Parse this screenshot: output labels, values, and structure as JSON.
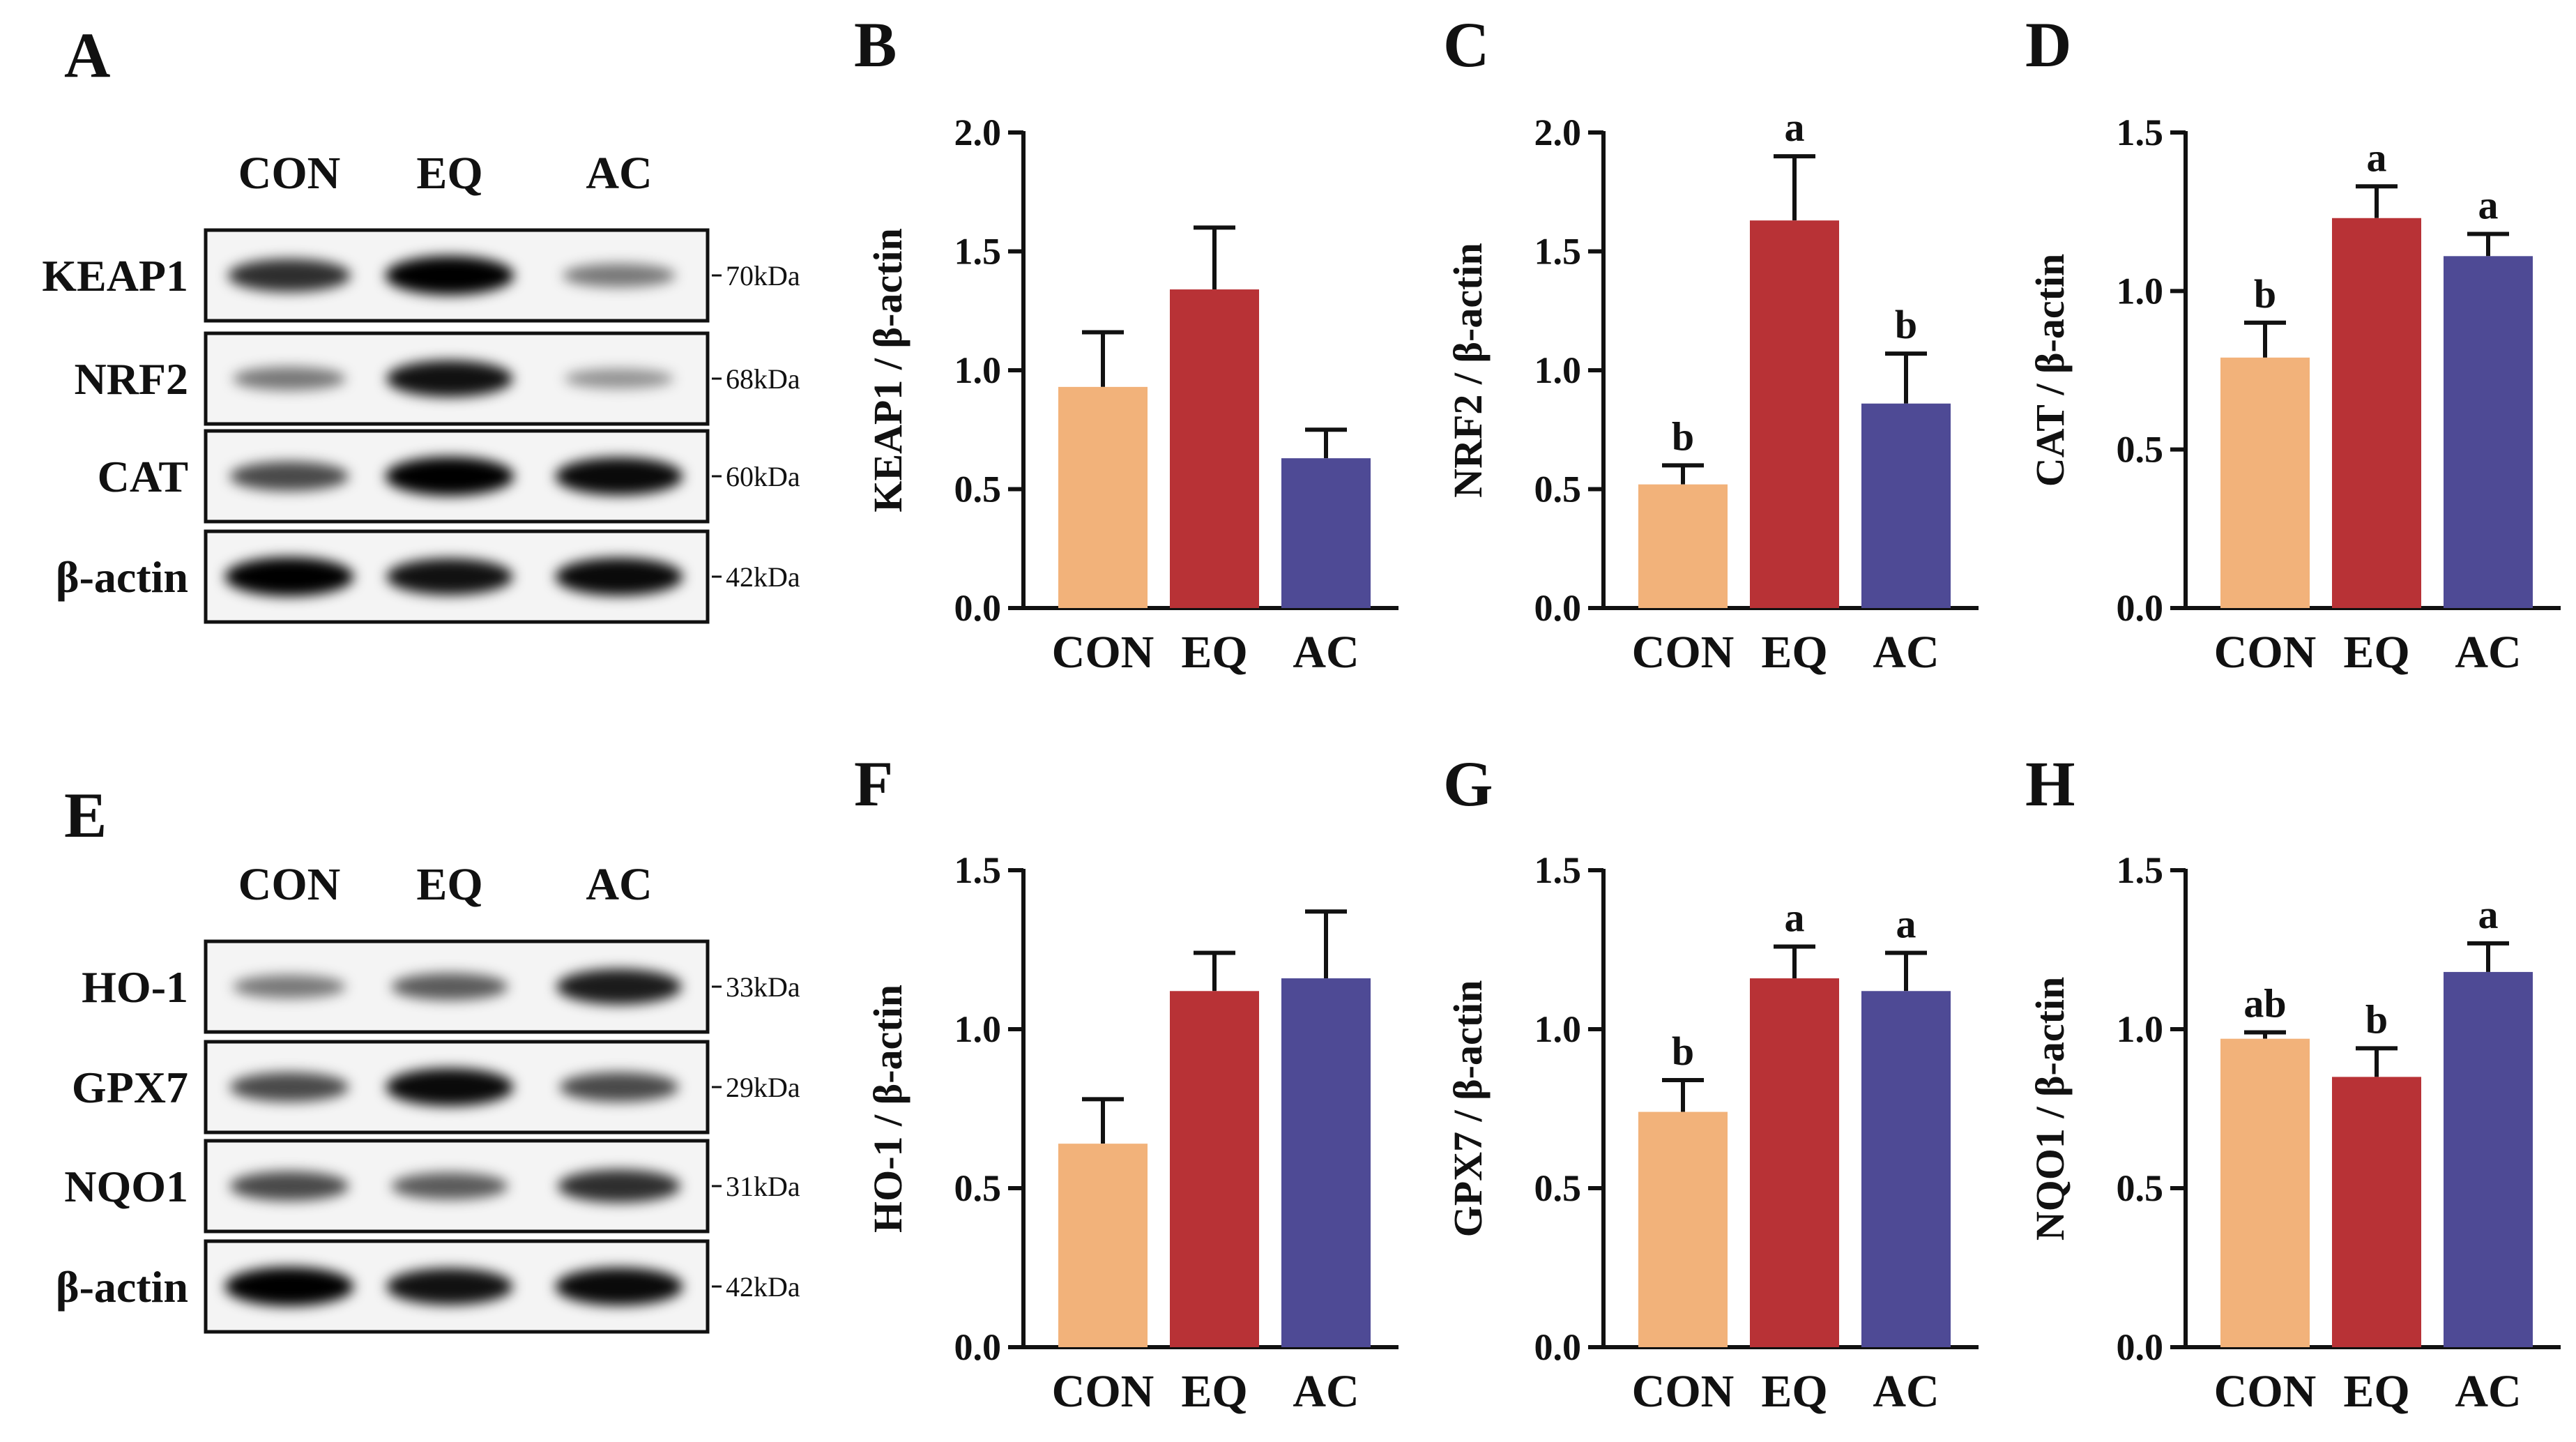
{
  "colors": {
    "CON": "#F2B27A",
    "EQ": "#B83236",
    "AC": "#4E4A95",
    "axis": "#111111"
  },
  "blots": [
    {
      "letter": "A",
      "lanes": [
        "CON",
        "EQ",
        "AC"
      ],
      "rows": [
        {
          "protein": "KEAP1",
          "kda": "70kDa",
          "intensity": [
            0.75,
            1.0,
            0.35
          ]
        },
        {
          "protein": "NRF2",
          "kda": "68kDa",
          "intensity": [
            0.35,
            0.9,
            0.2
          ]
        },
        {
          "protein": "CAT",
          "kda": "60kDa",
          "intensity": [
            0.6,
            1.0,
            0.95
          ]
        },
        {
          "protein": "β-actin",
          "kda": "42kDa",
          "intensity": [
            1.0,
            0.9,
            0.95
          ]
        }
      ]
    },
    {
      "letter": "E",
      "lanes": [
        "CON",
        "EQ",
        "AC"
      ],
      "rows": [
        {
          "protein": "HO-1",
          "kda": "33kDa",
          "intensity": [
            0.35,
            0.5,
            0.85
          ]
        },
        {
          "protein": "GPX7",
          "kda": "29kDa",
          "intensity": [
            0.6,
            0.95,
            0.6
          ]
        },
        {
          "protein": "NQO1",
          "kda": "31kDa",
          "intensity": [
            0.6,
            0.5,
            0.75
          ]
        },
        {
          "protein": "β-actin",
          "kda": "42kDa",
          "intensity": [
            1.0,
            0.9,
            0.95
          ]
        }
      ]
    }
  ],
  "chart_data": [
    {
      "letter": "B",
      "type": "bar",
      "categories": [
        "CON",
        "EQ",
        "AC"
      ],
      "values": [
        0.93,
        1.34,
        0.63
      ],
      "errors": [
        0.23,
        0.26,
        0.12
      ],
      "labels": [
        "",
        "",
        ""
      ],
      "ylabel": "KEAP1 / β-actin",
      "ylim": [
        0,
        2.0
      ],
      "ticks": [
        "0.0",
        "0.5",
        "1.0",
        "1.5",
        "2.0"
      ]
    },
    {
      "letter": "C",
      "type": "bar",
      "categories": [
        "CON",
        "EQ",
        "AC"
      ],
      "values": [
        0.52,
        1.63,
        0.86
      ],
      "errors": [
        0.08,
        0.27,
        0.21
      ],
      "labels": [
        "b",
        "a",
        "b"
      ],
      "ylabel": "NRF2 / β-actin",
      "ylim": [
        0,
        2.0
      ],
      "ticks": [
        "0.0",
        "0.5",
        "1.0",
        "1.5",
        "2.0"
      ]
    },
    {
      "letter": "D",
      "type": "bar",
      "categories": [
        "CON",
        "EQ",
        "AC"
      ],
      "values": [
        0.79,
        1.23,
        1.11
      ],
      "errors": [
        0.11,
        0.1,
        0.07
      ],
      "labels": [
        "b",
        "a",
        "a"
      ],
      "ylabel": "CAT / β-actin",
      "ylim": [
        0,
        1.5
      ],
      "ticks": [
        "0.0",
        "0.5",
        "1.0",
        "1.5"
      ]
    },
    {
      "letter": "F",
      "type": "bar",
      "categories": [
        "CON",
        "EQ",
        "AC"
      ],
      "values": [
        0.64,
        1.12,
        1.16
      ],
      "errors": [
        0.14,
        0.12,
        0.21
      ],
      "labels": [
        "",
        "",
        ""
      ],
      "ylabel": "HO-1 / β-actin",
      "ylim": [
        0,
        1.5
      ],
      "ticks": [
        "0.0",
        "0.5",
        "1.0",
        "1.5"
      ]
    },
    {
      "letter": "G",
      "type": "bar",
      "categories": [
        "CON",
        "EQ",
        "AC"
      ],
      "values": [
        0.74,
        1.16,
        1.12
      ],
      "errors": [
        0.1,
        0.1,
        0.12
      ],
      "labels": [
        "b",
        "a",
        "a"
      ],
      "ylabel": "GPX7 / β-actin",
      "ylim": [
        0,
        1.5
      ],
      "ticks": [
        "0.0",
        "0.5",
        "1.0",
        "1.5"
      ]
    },
    {
      "letter": "H",
      "type": "bar",
      "categories": [
        "CON",
        "EQ",
        "AC"
      ],
      "values": [
        0.97,
        0.85,
        1.18
      ],
      "errors": [
        0.02,
        0.09,
        0.09
      ],
      "labels": [
        "ab",
        "b",
        "a"
      ],
      "ylabel": "NQO1 / β-actin",
      "ylim": [
        0,
        1.5
      ],
      "ticks": [
        "0.0",
        "0.5",
        "1.0",
        "1.5"
      ]
    }
  ]
}
